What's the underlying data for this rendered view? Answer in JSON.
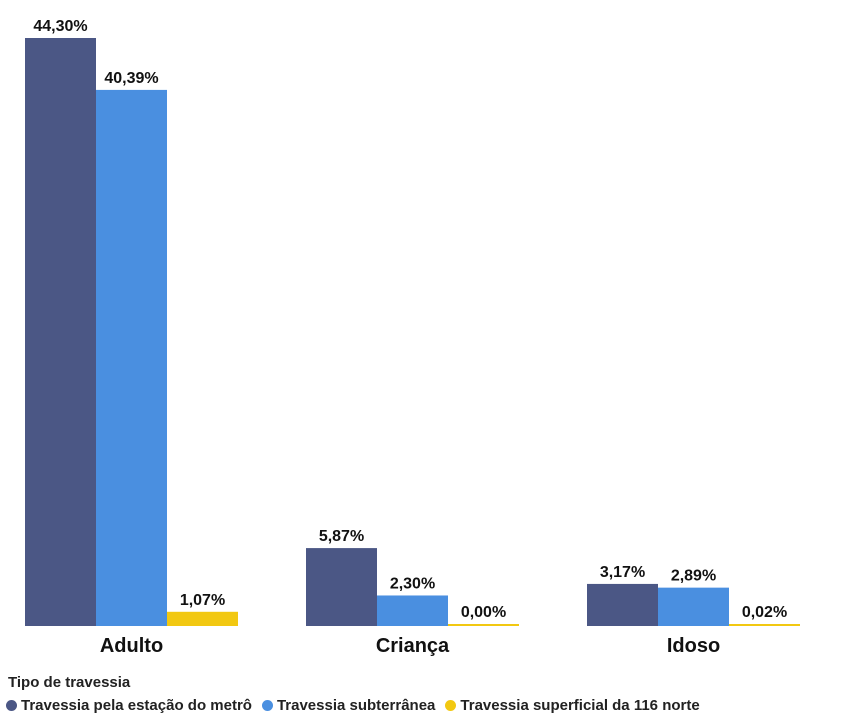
{
  "chart_data": {
    "type": "bar",
    "categories": [
      "Adulto",
      "Criança",
      "Idoso"
    ],
    "series": [
      {
        "name": "Travessia pela estação do metrô",
        "color": "#4b5785",
        "values": [
          44.3,
          5.87,
          3.17
        ],
        "labels": [
          "44,30%",
          "5,87%",
          "3,17%"
        ]
      },
      {
        "name": "Travessia subterrânea",
        "color": "#4a8fe0",
        "values": [
          40.39,
          2.3,
          2.89
        ],
        "labels": [
          "40,39%",
          "2,30%",
          "2,89%"
        ]
      },
      {
        "name": "Travessia superficial da 116 norte",
        "color": "#f2c811",
        "values": [
          1.07,
          0.0,
          0.02
        ],
        "labels": [
          "1,07%",
          "0,00%",
          "0,02%"
        ]
      }
    ],
    "legend_title": "Tipo de travessia",
    "legend_position": "bottom-left",
    "grid": false
  }
}
